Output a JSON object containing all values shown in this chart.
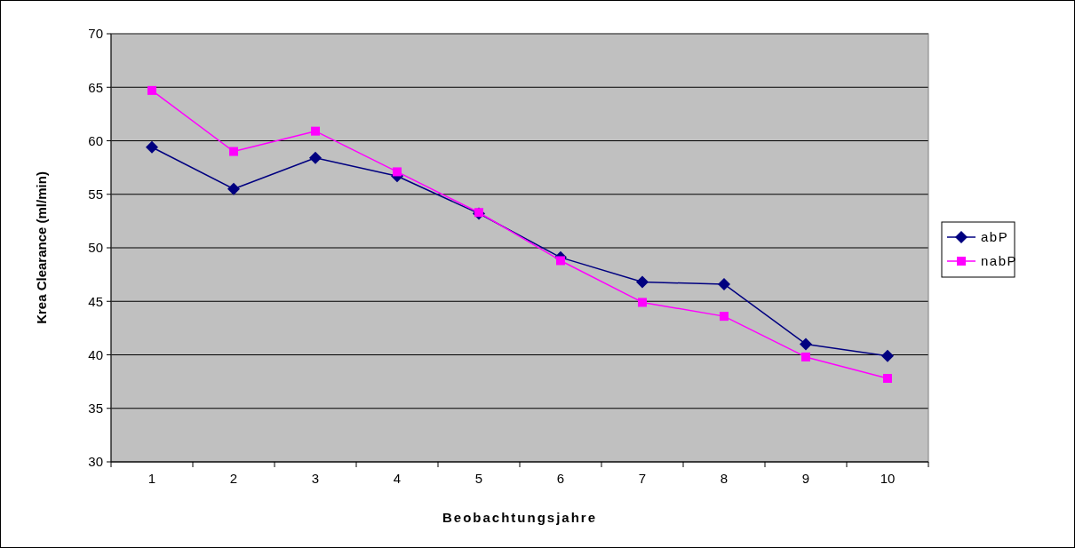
{
  "chart_data": {
    "type": "line",
    "xlabel": "Beobachtungsjahre",
    "ylabel": "Krea Clearance (ml/min)",
    "categories": [
      "1",
      "2",
      "3",
      "4",
      "5",
      "6",
      "7",
      "8",
      "9",
      "10"
    ],
    "series": [
      {
        "name": "abP",
        "color": "#000080",
        "marker": "diamond",
        "values": [
          59.4,
          55.5,
          58.4,
          56.7,
          53.2,
          49.1,
          46.8,
          46.6,
          41.0,
          39.9
        ]
      },
      {
        "name": "nabP",
        "color": "#ff00ff",
        "marker": "square",
        "values": [
          64.7,
          59.0,
          60.9,
          57.1,
          53.3,
          48.8,
          44.9,
          43.6,
          39.8,
          37.8
        ]
      }
    ],
    "ylim": [
      30,
      70
    ],
    "yticks": [
      30,
      35,
      40,
      45,
      50,
      55,
      60,
      65,
      70
    ],
    "grid": "y",
    "legend": "right"
  }
}
